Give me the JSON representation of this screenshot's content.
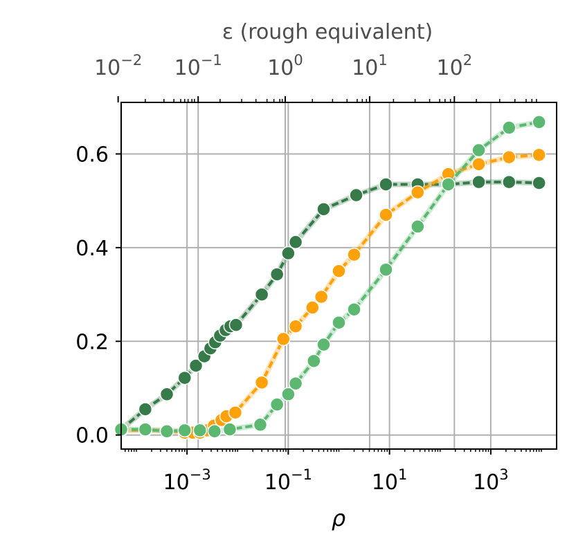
{
  "chart_data": {
    "type": "line",
    "title": "",
    "xlabel": "ρ",
    "ylabel": "",
    "x_scale": "log",
    "xlim": [
      5e-05,
      20000
    ],
    "ylim": [
      -0.03,
      0.71
    ],
    "grid": true,
    "x_ticks": [
      {
        "value": 0.001,
        "base": "10",
        "exp": "−3"
      },
      {
        "value": 0.1,
        "base": "10",
        "exp": "−1"
      },
      {
        "value": 10,
        "base": "10",
        "exp": "1"
      },
      {
        "value": 1000,
        "base": "10",
        "exp": "3"
      }
    ],
    "y_ticks": [
      {
        "value": 0.0,
        "label": "0.0"
      },
      {
        "value": 0.2,
        "label": "0.2"
      },
      {
        "value": 0.4,
        "label": "0.4"
      },
      {
        "value": 0.6,
        "label": "0.6"
      }
    ],
    "top_axis": {
      "label": "ε (rough equivalent)",
      "ticks": [
        {
          "rho": 4.36e-05,
          "base": "10",
          "exp": "−2"
        },
        {
          "rho": 0.00166,
          "base": "10",
          "exp": "−1"
        },
        {
          "rho": 0.0871,
          "base": "10",
          "exp": "0"
        },
        {
          "rho": 4.05,
          "base": "10",
          "exp": "1"
        },
        {
          "rho": 191,
          "base": "10",
          "exp": "2"
        }
      ],
      "minor_ticks": [
        0.00015,
        0.00035,
        0.00055,
        0.00075,
        0.0009,
        0.00105,
        0.00125,
        0.0014,
        0.0045,
        0.012,
        0.023,
        0.038,
        0.052,
        0.068,
        0.076,
        0.3,
        0.75,
        1.45,
        2.3,
        2.9,
        3.5,
        12,
        32,
        62,
        98,
        125,
        160,
        520,
        1500,
        3000,
        5000,
        6500,
        8000
      ]
    },
    "series": [
      {
        "color": "#357a48",
        "x": [
          5e-05,
          0.00015,
          0.0004,
          0.0009,
          0.0015,
          0.0022,
          0.0029,
          0.0036,
          0.0045,
          0.0058,
          0.0072,
          0.0093,
          0.03,
          0.06,
          0.1,
          0.14,
          0.5,
          2.2,
          8.5,
          36,
          145,
          580,
          2300,
          9000
        ],
        "y": [
          0.012,
          0.055,
          0.087,
          0.122,
          0.148,
          0.168,
          0.185,
          0.198,
          0.212,
          0.224,
          0.232,
          0.235,
          0.3,
          0.343,
          0.388,
          0.412,
          0.482,
          0.512,
          0.535,
          0.535,
          0.535,
          0.54,
          0.54,
          0.538
        ]
      },
      {
        "color": "#ffa10a",
        "x": [
          5e-05,
          0.00015,
          0.0004,
          0.0009,
          0.0013,
          0.0018,
          0.0025,
          0.0034,
          0.0048,
          0.006,
          0.009,
          0.03,
          0.08,
          0.14,
          0.3,
          0.45,
          1.0,
          2.0,
          8.5,
          36,
          145,
          580,
          2300,
          9000
        ],
        "y": [
          0.01,
          0.01,
          0.01,
          0.005,
          0.005,
          0.005,
          0.01,
          0.02,
          0.032,
          0.04,
          0.048,
          0.112,
          0.205,
          0.232,
          0.272,
          0.295,
          0.35,
          0.385,
          0.47,
          0.518,
          0.557,
          0.578,
          0.593,
          0.598
        ]
      },
      {
        "color": "#5cb870",
        "x": [
          5e-05,
          0.00015,
          0.0004,
          0.0009,
          0.0018,
          0.0035,
          0.007,
          0.028,
          0.06,
          0.1,
          0.14,
          0.32,
          0.5,
          1.0,
          2.0,
          8.5,
          36,
          145,
          580,
          2300,
          9000
        ],
        "y": [
          0.012,
          0.012,
          0.008,
          0.01,
          0.01,
          0.008,
          0.012,
          0.022,
          0.065,
          0.087,
          0.11,
          0.158,
          0.193,
          0.24,
          0.268,
          0.353,
          0.445,
          0.535,
          0.608,
          0.656,
          0.668
        ]
      }
    ]
  }
}
